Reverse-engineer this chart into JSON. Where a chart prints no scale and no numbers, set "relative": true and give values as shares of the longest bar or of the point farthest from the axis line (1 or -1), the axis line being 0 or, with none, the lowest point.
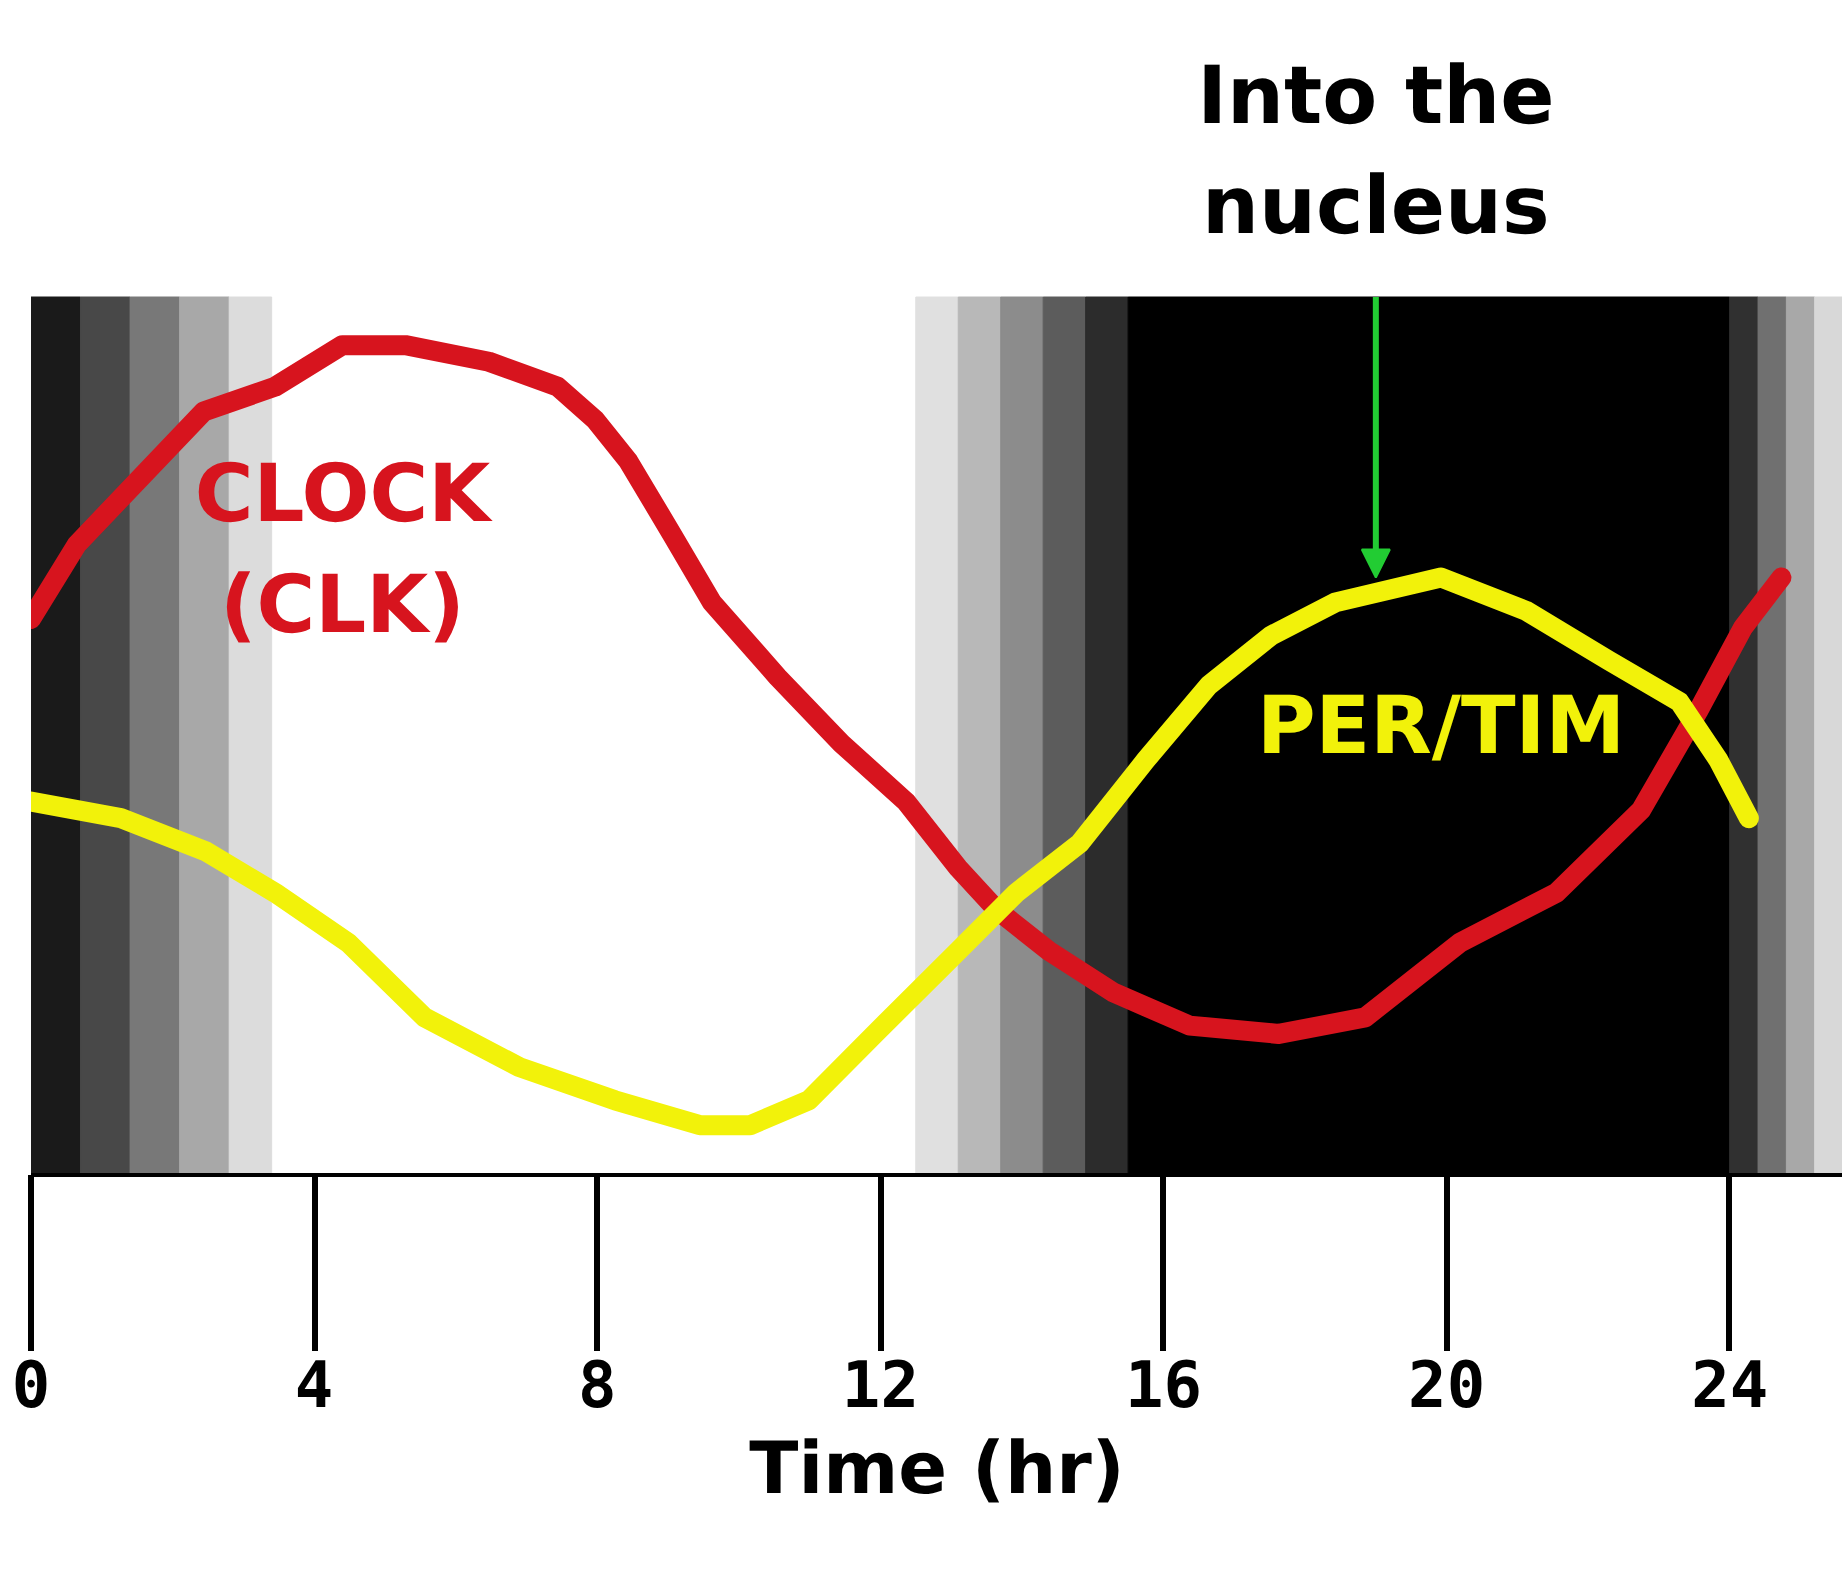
{
  "chart_data": {
    "type": "line",
    "relative": true,
    "xlabel": "Time (hr)",
    "xlim": [
      0,
      25.6
    ],
    "xticks": [
      0,
      4,
      8,
      12,
      16,
      20,
      24
    ],
    "grid": false,
    "legend": false,
    "tick_labels": "x",
    "marker": "none",
    "line_style": "solid",
    "series": [
      {
        "name": "CLOCK (CLK)",
        "color": "#d7141e",
        "x": [
          0,
          0.65,
          2.44,
          3.45,
          4.4,
          5.29,
          6.47,
          7.44,
          7.97,
          8.44,
          9.07,
          9.62,
          10.55,
          11.45,
          12.36,
          13.1,
          13.64,
          14.38,
          15.29,
          16.37,
          17.63,
          18.85,
          20.19,
          21.55,
          22.75,
          23.56,
          24.19,
          24.73
        ],
        "values": [
          0.67,
          0.76,
          0.92,
          0.95,
          1.0,
          1.0,
          0.98,
          0.95,
          0.91,
          0.86,
          0.77,
          0.69,
          0.6,
          0.52,
          0.45,
          0.37,
          0.32,
          0.27,
          0.22,
          0.18,
          0.17,
          0.19,
          0.28,
          0.34,
          0.44,
          0.56,
          0.66,
          0.72
        ]
      },
      {
        "name": "PER/TIM",
        "color": "#f2f20a",
        "x": [
          0,
          1.27,
          2.47,
          3.45,
          4.48,
          5.56,
          6.9,
          8.25,
          9.45,
          10.16,
          10.99,
          11.92,
          13.1,
          13.92,
          14.82,
          15.75,
          16.64,
          17.52,
          18.43,
          19.92,
          21.12,
          22.29,
          23.29,
          23.84,
          24.27
        ],
        "values": [
          0.45,
          0.43,
          0.39,
          0.34,
          0.28,
          0.19,
          0.13,
          0.09,
          0.06,
          0.06,
          0.09,
          0.17,
          0.27,
          0.34,
          0.4,
          0.5,
          0.59,
          0.65,
          0.69,
          0.72,
          0.68,
          0.62,
          0.57,
          0.5,
          0.43
        ]
      }
    ],
    "bands": [
      {
        "axis": "x",
        "from": 0,
        "to": 0.7,
        "color": "#1a1a1a"
      },
      {
        "axis": "x",
        "from": 0.7,
        "to": 1.4,
        "color": "#484848"
      },
      {
        "axis": "x",
        "from": 1.4,
        "to": 2.1,
        "color": "#787878"
      },
      {
        "axis": "x",
        "from": 2.1,
        "to": 2.8,
        "color": "#a8a8a8"
      },
      {
        "axis": "x",
        "from": 2.8,
        "to": 3.4,
        "color": "#dcdcdc"
      },
      {
        "axis": "x",
        "from": 12.5,
        "to": 13.1,
        "color": "#e0e0e0"
      },
      {
        "axis": "x",
        "from": 13.1,
        "to": 13.7,
        "color": "#b8b8b8"
      },
      {
        "axis": "x",
        "from": 13.7,
        "to": 14.3,
        "color": "#8c8c8c"
      },
      {
        "axis": "x",
        "from": 14.3,
        "to": 14.9,
        "color": "#5c5c5c"
      },
      {
        "axis": "x",
        "from": 14.9,
        "to": 15.5,
        "color": "#2c2c2c"
      },
      {
        "axis": "x",
        "from": 15.5,
        "to": 24,
        "color": "#000000"
      },
      {
        "axis": "x",
        "from": 24,
        "to": 24.4,
        "color": "#303030"
      },
      {
        "axis": "x",
        "from": 24.4,
        "to": 24.8,
        "color": "#707070"
      },
      {
        "axis": "x",
        "from": 24.8,
        "to": 25.2,
        "color": "#a8a8a8"
      },
      {
        "axis": "x",
        "from": 25.2,
        "to": 25.6,
        "color": "#d8d8d8"
      }
    ],
    "annotations": [
      {
        "text": "Into the nucleus",
        "x": 19,
        "y": 0.72
      }
    ]
  }
}
